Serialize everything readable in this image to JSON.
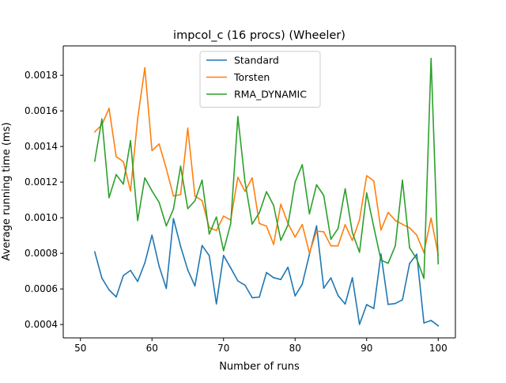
{
  "chart_data": {
    "type": "line",
    "title": "impcol_c (16 procs) (Wheeler)",
    "xlabel": "Number of runs",
    "ylabel": "Average running time (ms)",
    "xlim": [
      47.6,
      102.4
    ],
    "ylim": [
      0.000325,
      0.001965
    ],
    "xticks": [
      50,
      60,
      70,
      80,
      90,
      100
    ],
    "yticks": [
      0.0004,
      0.0006,
      0.0008,
      0.001,
      0.0012,
      0.0014,
      0.0016,
      0.0018
    ],
    "ytick_labels": [
      "0.0004",
      "0.0006",
      "0.0008",
      "0.0010",
      "0.0012",
      "0.0014",
      "0.0016",
      "0.0018"
    ],
    "legend_position": "top-center",
    "grid": false,
    "x": [
      52,
      53,
      54,
      55,
      56,
      57,
      58,
      59,
      60,
      61,
      62,
      63,
      64,
      65,
      66,
      67,
      68,
      69,
      70,
      71,
      72,
      73,
      74,
      75,
      76,
      77,
      78,
      79,
      80,
      81,
      82,
      83,
      84,
      85,
      86,
      87,
      88,
      89,
      90,
      91,
      92,
      93,
      94,
      95,
      96,
      97,
      98,
      99,
      100
    ],
    "series": [
      {
        "name": "Standard",
        "color": "#1f77b4",
        "values": [
          0.000808,
          0.000661,
          0.000595,
          0.000555,
          0.000675,
          0.000704,
          0.000642,
          0.000746,
          0.000902,
          0.000727,
          0.000603,
          0.000995,
          0.000839,
          0.000707,
          0.000617,
          0.000844,
          0.000787,
          0.000516,
          0.000788,
          0.000718,
          0.000645,
          0.000621,
          0.000551,
          0.000554,
          0.000692,
          0.000663,
          0.000653,
          0.000722,
          0.000561,
          0.000627,
          0.000794,
          0.000954,
          0.000604,
          0.000662,
          0.000563,
          0.000515,
          0.000663,
          0.000401,
          0.000512,
          0.00049,
          0.000796,
          0.000513,
          0.000518,
          0.000539,
          0.000743,
          0.000795,
          0.000409,
          0.000423,
          0.000393
        ]
      },
      {
        "name": "Torsten",
        "color": "#ff7f0e",
        "values": [
          0.001482,
          0.001522,
          0.001614,
          0.001343,
          0.001315,
          0.00115,
          0.001557,
          0.001842,
          0.001377,
          0.001414,
          0.001276,
          0.001122,
          0.00113,
          0.001503,
          0.001122,
          0.001096,
          0.000944,
          0.000928,
          0.001009,
          0.000987,
          0.001227,
          0.001148,
          0.001224,
          0.000968,
          0.000953,
          0.00085,
          0.001076,
          0.000968,
          0.000891,
          0.000962,
          0.000801,
          0.000925,
          0.000921,
          0.000842,
          0.000842,
          0.000961,
          0.000872,
          0.000988,
          0.001236,
          0.001206,
          0.000931,
          0.001029,
          0.000985,
          0.000963,
          0.000943,
          0.000902,
          0.000804,
          0.000998,
          0.000791
        ]
      },
      {
        "name": "RMA_DYNAMIC",
        "color": "#2ca02c",
        "values": [
          0.001318,
          0.001554,
          0.001113,
          0.001242,
          0.001189,
          0.001433,
          0.000984,
          0.001224,
          0.001151,
          0.001086,
          0.000954,
          0.001049,
          0.001289,
          0.001051,
          0.001095,
          0.001211,
          0.000908,
          0.001004,
          0.000815,
          0.000967,
          0.001568,
          0.001201,
          0.000964,
          0.001028,
          0.001146,
          0.001069,
          0.000873,
          0.000959,
          0.001201,
          0.001298,
          0.001022,
          0.001185,
          0.001125,
          0.000879,
          0.000939,
          0.001162,
          0.000916,
          0.000806,
          0.001139,
          0.000947,
          0.000762,
          0.000744,
          0.000842,
          0.001211,
          0.000831,
          0.000768,
          0.000659,
          0.001895,
          0.000741
        ]
      }
    ]
  }
}
